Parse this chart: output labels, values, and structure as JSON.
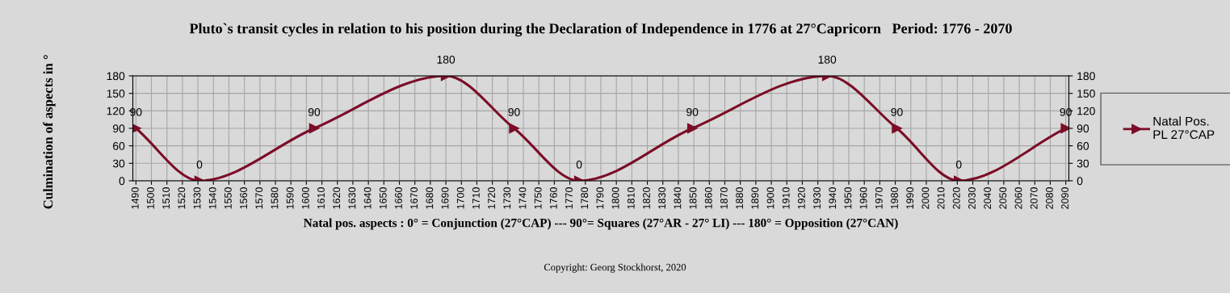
{
  "chart_data": {
    "type": "line",
    "title": "Pluto`s transit cycles in relation to his position during the Declaration of Independence in 1776 at 27°Capricorn   Period: 1776 - 2070",
    "xlabel": "Natal pos. aspects : 0° = Conjunction (27°CAP) --- 90°= Squares (27°AR - 27° LI) --- 180° = Opposition (27°CAN)",
    "ylabel": "Culmination of aspects in °",
    "annotations": [
      "Copyright: Georg Stockhorst, 2020"
    ],
    "x": [
      1490,
      1531,
      1605,
      1690,
      1734,
      1776,
      1849,
      1936,
      1981,
      2021,
      2090
    ],
    "series": [
      {
        "name": "Natal Pos.\nPL 27°CAP",
        "color": "#7b0d27",
        "values": [
          90,
          0,
          90,
          180,
          90,
          0,
          90,
          180,
          90,
          0,
          90
        ]
      }
    ],
    "xlim": [
      1488,
      2092
    ],
    "xticks": [
      1490,
      1500,
      1510,
      1520,
      1530,
      1540,
      1550,
      1560,
      1570,
      1580,
      1590,
      1600,
      1610,
      1620,
      1630,
      1640,
      1650,
      1660,
      1670,
      1680,
      1690,
      1700,
      1710,
      1720,
      1730,
      1740,
      1750,
      1760,
      1770,
      1780,
      1790,
      1800,
      1810,
      1820,
      1830,
      1840,
      1850,
      1860,
      1870,
      1880,
      1890,
      1900,
      1910,
      1920,
      1930,
      1940,
      1950,
      1960,
      1970,
      1980,
      1990,
      2000,
      2010,
      2020,
      2030,
      2040,
      2050,
      2060,
      2070,
      2080,
      2090
    ],
    "ylim": [
      0,
      180
    ],
    "yticks": [
      0,
      30,
      60,
      90,
      120,
      150,
      180
    ],
    "y2lim": [
      0,
      180
    ],
    "y2ticks": [
      0,
      30,
      60,
      90,
      120,
      150,
      180
    ],
    "grid": true,
    "legend": "right",
    "marker": "triangle",
    "line_style": "solid",
    "data_labels": true
  }
}
